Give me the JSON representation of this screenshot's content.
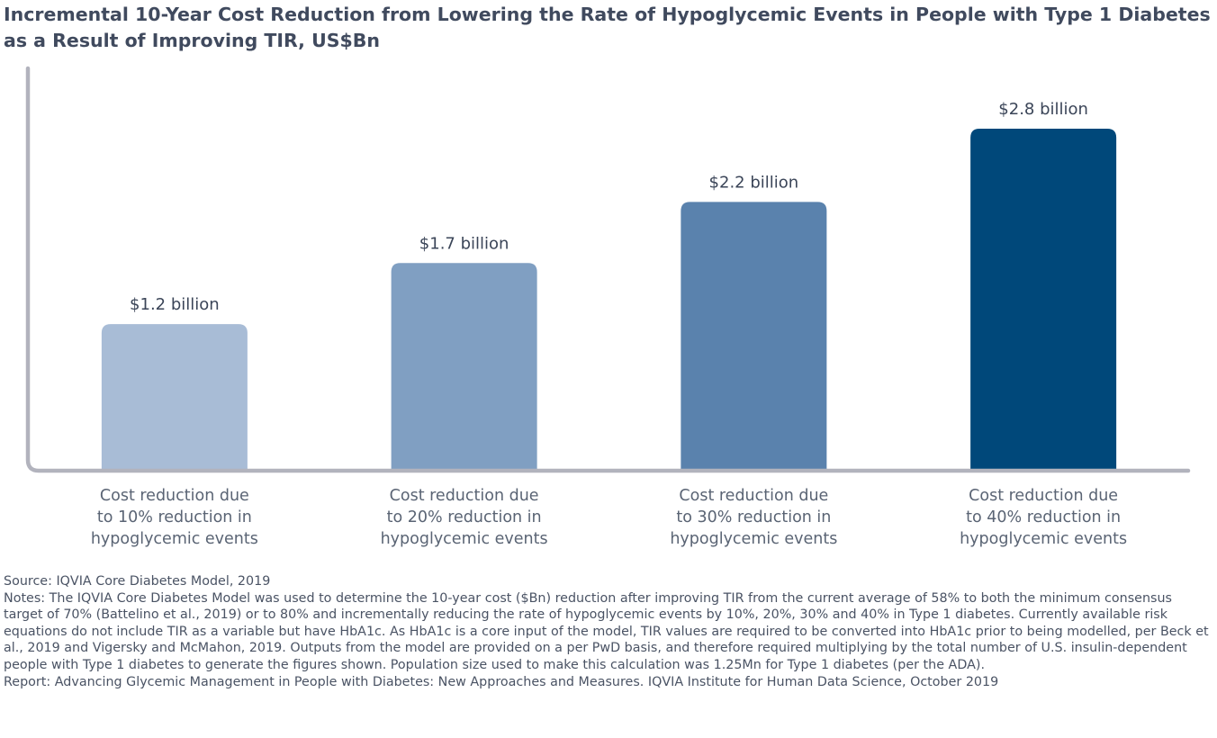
{
  "chart_data": {
    "type": "bar",
    "title": "Incremental 10-Year Cost Reduction from Lowering the Rate of Hypoglycemic Events in People with Type 1 Diabetes as a Result of Improving TIR, US$Bn",
    "categories": [
      "Cost reduction due to 10% reduction in hypoglycemic events",
      "Cost reduction due to 20% reduction in hypoglycemic events",
      "Cost reduction due to 30% reduction in hypoglycemic events",
      "Cost reduction due to 40% reduction in hypoglycemic events"
    ],
    "category_lines": [
      [
        "Cost reduction due",
        "to 10% reduction in",
        "hypoglycemic events"
      ],
      [
        "Cost reduction due",
        "to 20% reduction in",
        "hypoglycemic events"
      ],
      [
        "Cost reduction due",
        "to 30% reduction in",
        "hypoglycemic events"
      ],
      [
        "Cost reduction due",
        "to 40% reduction in",
        "hypoglycemic events"
      ]
    ],
    "values": [
      1.2,
      1.7,
      2.2,
      2.8
    ],
    "data_labels": [
      "$1.2 billion",
      "$1.7 billion",
      "$2.2 billion",
      "$2.8 billion"
    ],
    "colors": [
      "#a8bcd6",
      "#809fc2",
      "#5a82ad",
      "#00487a"
    ],
    "axis_color": "#b2b3bd",
    "xlabel": "",
    "ylabel": "",
    "ylim": [
      0,
      2.8
    ],
    "grid": false,
    "legend": "none"
  },
  "footer": {
    "source": "Source: IQVIA Core Diabetes Model, 2019",
    "notes": "Notes: The IQVIA Core Diabetes Model was used to determine the 10-year cost ($Bn) reduction after improving TIR from the current average of 58% to both the minimum consensus target of 70% (Battelino et al., 2019) or to 80% and incrementally reducing the rate of hypoglycemic events by 10%, 20%, 30% and 40% in Type 1 diabetes. Currently available risk equations do not include TIR as a variable but have HbA1c. As HbA1c is a core input of the model, TIR values are required to be converted into HbA1c prior to being modelled, per Beck et al., 2019 and Vigersky and McMahon, 2019. Outputs from the model are provided on a per PwD basis, and therefore required multiplying by the total number of U.S. insulin-dependent people with Type 1 diabetes to generate the figures shown. Population size used to make this calculation was 1.25Mn for Type 1 diabetes (per the ADA).",
    "report": "Report: Advancing Glycemic Management in People with Diabetes: New Approaches and Measures. IQVIA Institute for Human Data Science, October 2019"
  }
}
